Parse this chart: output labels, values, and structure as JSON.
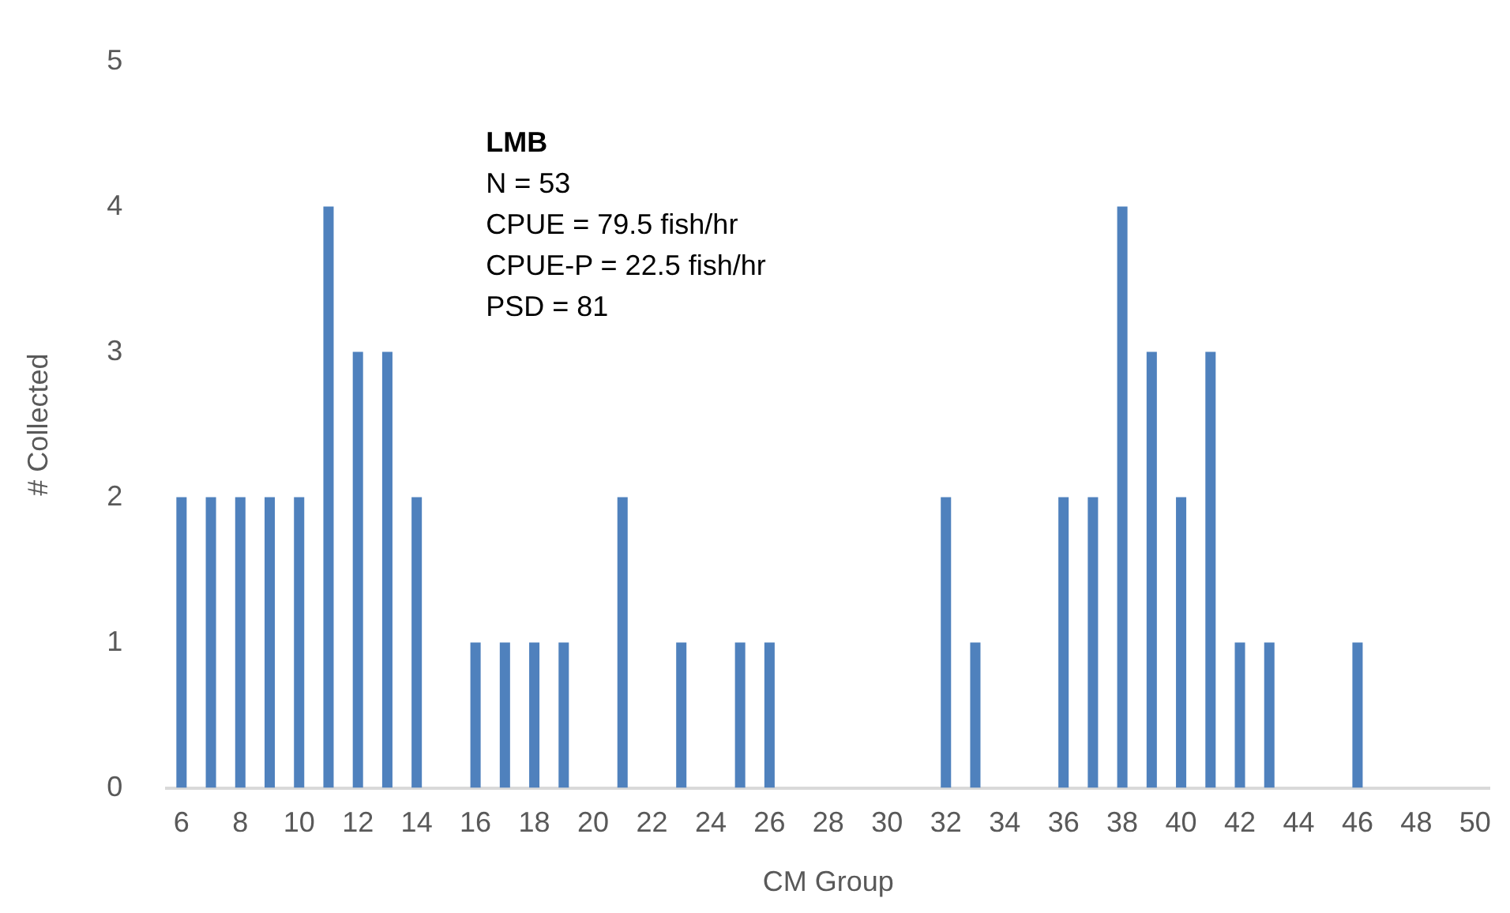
{
  "chart_data": {
    "type": "bar",
    "xlabel": "CM Group",
    "ylabel": "# Collected",
    "categories": [
      "6",
      null,
      "8",
      null,
      "10",
      null,
      "12",
      null,
      "14",
      null,
      "16",
      null,
      "18",
      null,
      "20",
      null,
      "22",
      null,
      "24",
      null,
      "26",
      null,
      "28",
      null,
      "30",
      null,
      "32",
      null,
      "34",
      null,
      "36",
      null,
      "38",
      null,
      "40",
      null,
      "42",
      null,
      "44",
      null,
      "46",
      null,
      "48",
      null,
      "50"
    ],
    "values": [
      2,
      2,
      2,
      2,
      2,
      4,
      3,
      3,
      2,
      0,
      1,
      1,
      1,
      1,
      0,
      2,
      0,
      1,
      0,
      1,
      1,
      0,
      0,
      0,
      0,
      0,
      2,
      1,
      0,
      0,
      2,
      2,
      4,
      3,
      2,
      3,
      1,
      1,
      0,
      0,
      1,
      0,
      0,
      0,
      0
    ],
    "color": "#4f81bd",
    "ylim": [
      0,
      5
    ],
    "yticks": [
      0,
      1,
      2,
      3,
      4,
      5
    ],
    "grid": false,
    "legend": false,
    "annotations": [
      "LMB",
      "N = 53",
      "CPUE = 79.5 fish/hr",
      "CPUE-P = 22.5 fish/hr",
      "PSD = 81"
    ]
  }
}
